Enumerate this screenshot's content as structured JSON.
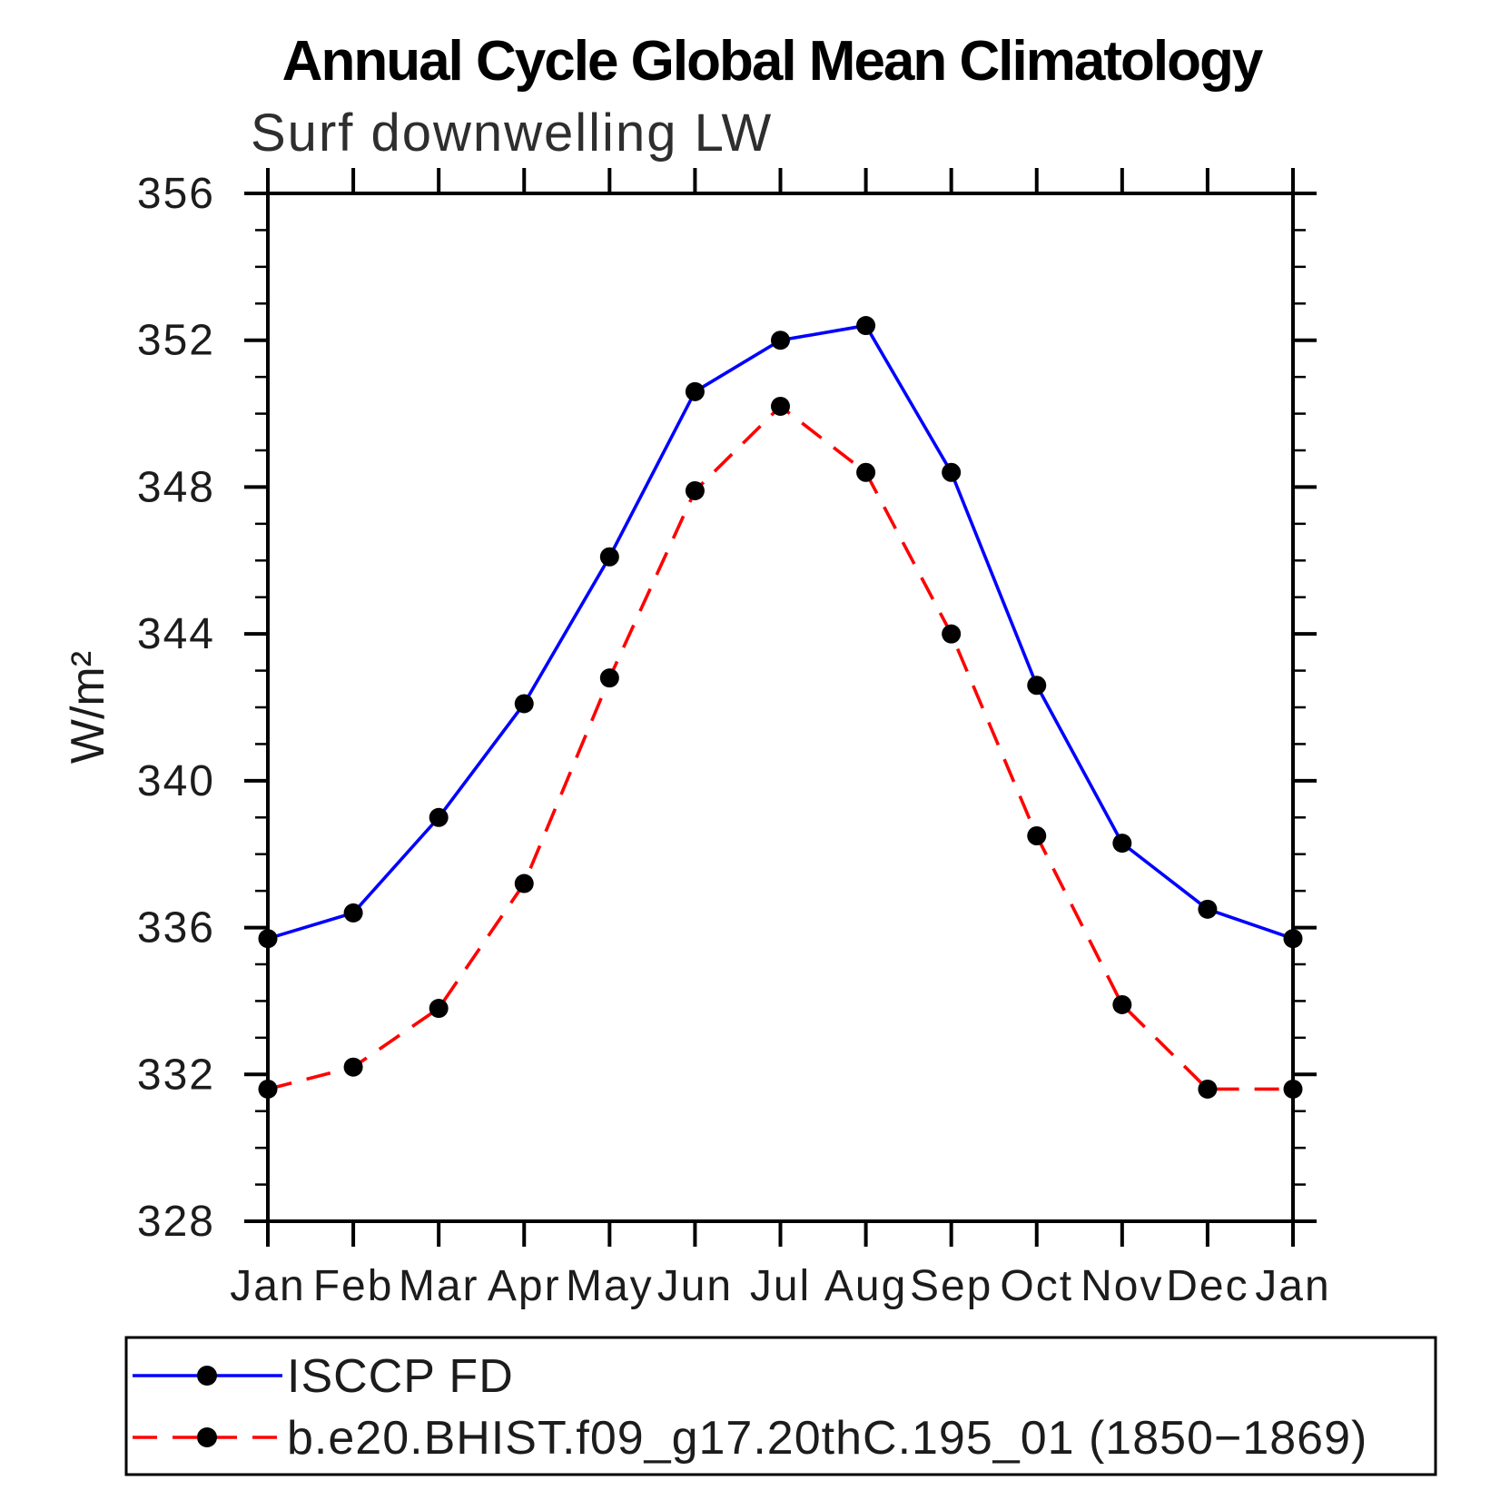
{
  "figure": {
    "background": "#ffffff",
    "axis_color": "#000000",
    "marker_color": "#000000"
  },
  "chart_data": {
    "type": "line",
    "title": "Annual Cycle Global Mean Climatology",
    "subtitle": "Surf downwelling LW",
    "xlabel": "",
    "ylabel": "W/m²",
    "categories": [
      "Jan",
      "Feb",
      "Mar",
      "Apr",
      "May",
      "Jun",
      "Jul",
      "Aug",
      "Sep",
      "Oct",
      "Nov",
      "Dec",
      "Jan"
    ],
    "ylim": [
      328,
      356
    ],
    "yticks": [
      328,
      332,
      336,
      340,
      344,
      348,
      352,
      356
    ],
    "ytick_interval": 4,
    "yminor_interval": 1,
    "grid": "off",
    "legend_position": "bottom",
    "series": [
      {
        "name": "ISCCP FD",
        "color": "#0000ff",
        "line_style": "solid",
        "marker": "filled-circle",
        "marker_color": "#000000",
        "values": [
          335.7,
          336.4,
          339.0,
          342.1,
          346.1,
          350.6,
          352.0,
          352.4,
          348.4,
          342.6,
          338.3,
          336.5,
          335.7
        ]
      },
      {
        "name": "b.e20.BHIST.f09_g17.20thC.195_01 (1850−1869)",
        "color": "#ff0000",
        "line_style": "dashed",
        "marker": "filled-circle",
        "marker_color": "#000000",
        "values": [
          331.6,
          332.2,
          333.8,
          337.2,
          342.8,
          347.9,
          350.2,
          348.4,
          344.0,
          338.5,
          333.9,
          331.6,
          331.6
        ]
      }
    ]
  }
}
